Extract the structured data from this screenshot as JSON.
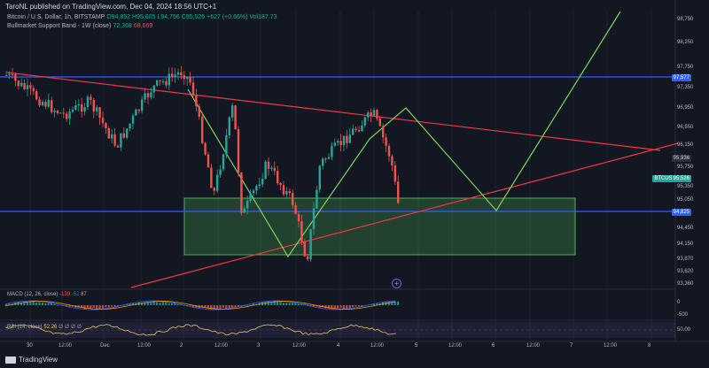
{
  "header": {
    "published": "TaroNL published on TradingView.com, Dec 04, 2024 18:56 UTC+1"
  },
  "legend": {
    "symbol": "Bitcoin / U.S. Dollar, 1h, BITSTAMP",
    "o": "O94,852",
    "h": "H95,605",
    "l": "L94,756",
    "c": "C95,526",
    "chg": "+627 (+0.66%)",
    "vol": "Vol187.73",
    "indicator": "Bullmarket Support Band - 1W (close)",
    "ind_v1": "72,368",
    "ind_v2": "68,669"
  },
  "price_axis": {
    "labels": [
      "98,750",
      "98,250",
      "97,750",
      "97,350",
      "96,950",
      "96,550",
      "96,150",
      "95,750",
      "95,350",
      "95,050",
      "94,450",
      "94,150",
      "93,870",
      "93,620",
      "93,360"
    ],
    "tag_upper": "97,577",
    "tag_btc_name": "BTCUSD",
    "tag_btc": "95,526",
    "tag_lower": "94,825",
    "tag_mid": "95,936"
  },
  "macd": {
    "label": "MACD (12, 26, close)",
    "v1": "-139",
    "v2": "-52",
    "v3": "87",
    "axis": [
      "0",
      "-500"
    ]
  },
  "rsi": {
    "label": "RSI (14, close)",
    "v1": "52.26",
    "placeholders": "∅ ∅ ∅ ∅",
    "axis": "50.00"
  },
  "time_axis": [
    "30",
    "12:00",
    "Dec",
    "12:00",
    "2",
    "12:00",
    "3",
    "12:00",
    "4",
    "12:00",
    "5",
    "12:00",
    "6",
    "12:00",
    "7",
    "12:00",
    "8"
  ],
  "footer": {
    "brand": "TradingView"
  },
  "colors": {
    "bg": "#131722",
    "up": "#26a69a",
    "down": "#ef5350",
    "hline": "#2962ff",
    "trend": "#f23645",
    "projection": "#7cd65c",
    "zone": "#4caf50"
  },
  "icons": {
    "alert": "plus-circle-icon",
    "logo": "tradingview-logo-icon"
  }
}
